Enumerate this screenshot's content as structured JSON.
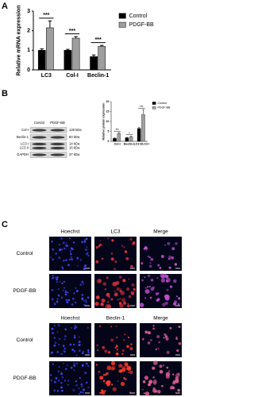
{
  "panel_labels": [
    "A",
    "B",
    "C"
  ],
  "chart_data": [
    {
      "type": "bar",
      "ylabel": "Relative mRNA expression",
      "categories": [
        "LC3",
        "Col-I",
        "Beclin-1"
      ],
      "series": [
        {
          "name": "Control",
          "color": "#000000",
          "values": [
            1.0,
            1.0,
            0.68
          ],
          "errors": [
            0.07,
            0.05,
            0.08
          ]
        },
        {
          "name": "PDGF-BB",
          "color": "#9e9e9e",
          "values": [
            2.15,
            1.62,
            1.2
          ],
          "errors": [
            0.35,
            0.08,
            0.05
          ]
        }
      ],
      "ylim": [
        0,
        3
      ],
      "yticks": [
        0,
        1,
        2,
        3
      ],
      "annotations": [
        "***",
        "***",
        "***"
      ],
      "legend": "right"
    },
    {
      "type": "bar",
      "ylabel": "Relative protein expression",
      "categories": [
        "Col-I",
        "Beclin-1",
        "LC3 II/LC3 I"
      ],
      "series": [
        {
          "name": "Control",
          "color": "#000000",
          "values": [
            1.5,
            1.8,
            6.5
          ],
          "errors": [
            0.3,
            0.2,
            0.5
          ]
        },
        {
          "name": "PDGF-BB",
          "color": "#9e9e9e",
          "values": [
            4.0,
            2.3,
            13.5
          ],
          "errors": [
            0.4,
            0.3,
            2.5
          ]
        }
      ],
      "ylim": [
        0,
        20
      ],
      "yticks": [
        0,
        5,
        10,
        15,
        20
      ],
      "annotations": [
        "***",
        "*",
        "***"
      ],
      "legend": "right"
    }
  ],
  "blot": {
    "columns": [
      "Control",
      "PDGF-BB"
    ],
    "rows": [
      {
        "protein": "Col-I",
        "size": "128 kDa"
      },
      {
        "protein": "Beclin-1",
        "size": "60 kDa"
      },
      {
        "protein": "LC3 I",
        "size": "14 kDa"
      },
      {
        "protein": "LC3 II",
        "size": "16 kDa"
      },
      {
        "protein": "GAPDH",
        "size": "37 kDa"
      }
    ]
  },
  "microscopy": [
    {
      "headers": [
        "Hoechst",
        "LC3",
        "Merge"
      ],
      "rows": [
        "Control",
        "PDGF-BB"
      ]
    },
    {
      "headers": [
        "Hoechst",
        "Beclin-1",
        "Merge"
      ],
      "rows": [
        "Control",
        "PDGF-BB"
      ]
    }
  ]
}
